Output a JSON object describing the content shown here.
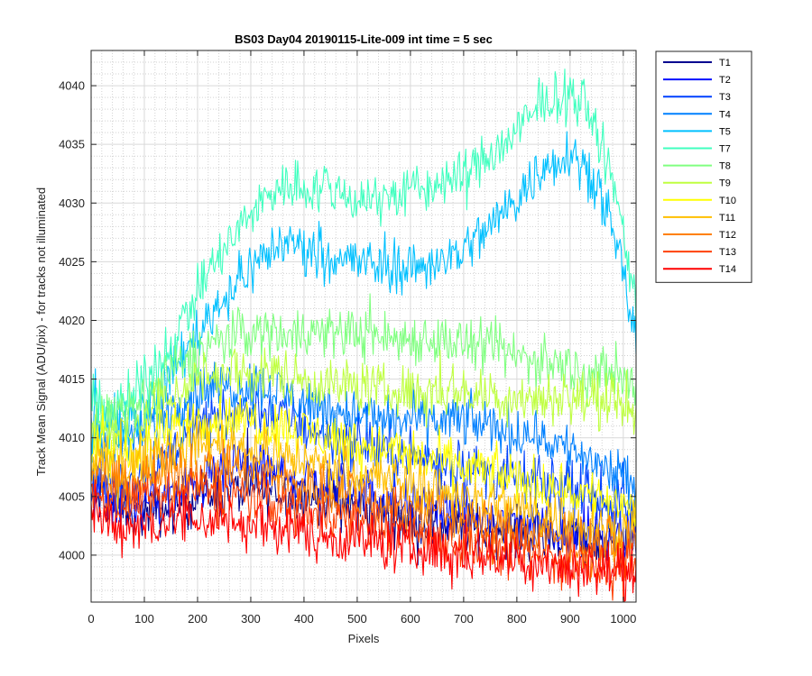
{
  "chart_data": {
    "type": "line",
    "title": "BS03 Day04 20190115-Lite-009 int time = 5 sec",
    "xlabel": "Pixels",
    "ylabel": "Track Mean Signal (ADU/pix) - for tracks not illuminated",
    "xlim": [
      0,
      1024
    ],
    "ylim": [
      3996,
      4043
    ],
    "xticks": [
      0,
      100,
      200,
      300,
      400,
      500,
      600,
      700,
      800,
      900,
      1000
    ],
    "yticks": [
      4000,
      4005,
      4010,
      4015,
      4020,
      4025,
      4030,
      4035,
      4040
    ],
    "grid": true,
    "minor_grid": true,
    "legend_position": "outside-top-right",
    "series": [
      {
        "name": "T1",
        "color": "#00008f",
        "x": [
          0,
          50,
          100,
          150,
          200,
          250,
          300,
          350,
          400,
          450,
          500,
          550,
          600,
          650,
          700,
          750,
          800,
          850,
          900,
          950,
          1000,
          1024
        ],
        "values": [
          4005,
          4004,
          4003.5,
          4004,
          4005,
          4005.5,
          4005.5,
          4005.5,
          4005,
          4004.5,
          4004,
          4003.5,
          4003,
          4002.5,
          4002.5,
          4002,
          4002,
          4001.5,
          4001.5,
          4001,
          4001,
          4001
        ]
      },
      {
        "name": "T2",
        "color": "#0010ff",
        "x": [
          0,
          50,
          100,
          150,
          200,
          250,
          300,
          350,
          400,
          450,
          500,
          550,
          600,
          650,
          700,
          750,
          800,
          850,
          900,
          950,
          1000,
          1024
        ],
        "values": [
          4005.5,
          4004.5,
          4004.5,
          4005,
          4006,
          4007,
          4007.5,
          4007,
          4006.5,
          4006,
          4005.5,
          4005,
          4004.5,
          4004,
          4003.5,
          4003,
          4003,
          4002.5,
          4002,
          4002,
          4002,
          4002
        ]
      },
      {
        "name": "T3",
        "color": "#0040ff",
        "x": [
          0,
          50,
          100,
          150,
          200,
          250,
          300,
          350,
          400,
          450,
          500,
          550,
          600,
          650,
          700,
          750,
          800,
          850,
          900,
          950,
          1000,
          1024
        ],
        "values": [
          4006.5,
          4006,
          4007,
          4009,
          4011,
          4012,
          4012.5,
          4012,
          4011,
          4010,
          4009.5,
          4009,
          4008.5,
          4008,
          4007.5,
          4007,
          4006.5,
          4006,
          4005.5,
          4005,
          4004,
          4004
        ]
      },
      {
        "name": "T4",
        "color": "#0080ff",
        "x": [
          0,
          50,
          100,
          150,
          200,
          250,
          300,
          350,
          400,
          450,
          500,
          550,
          600,
          650,
          700,
          750,
          800,
          850,
          900,
          950,
          1000,
          1024
        ],
        "values": [
          4010,
          4009,
          4010.5,
          4012.5,
          4014,
          4014.5,
          4014.5,
          4014,
          4013,
          4012.5,
          4012,
          4011.5,
          4011.5,
          4011.5,
          4011.5,
          4011,
          4010.5,
          4010,
          4009,
          4008,
          4006.5,
          4005
        ]
      },
      {
        "name": "T5",
        "color": "#00c0ff",
        "x": [
          0,
          50,
          100,
          150,
          200,
          250,
          300,
          350,
          400,
          450,
          500,
          550,
          600,
          650,
          700,
          750,
          800,
          850,
          900,
          950,
          1000,
          1024
        ],
        "values": [
          4012,
          4011,
          4012.5,
          4015.5,
          4019,
          4022,
          4024.5,
          4026.5,
          4026.5,
          4025.5,
          4025,
          4024.5,
          4024.5,
          4025,
          4026,
          4028,
          4030.5,
          4033,
          4034.5,
          4032,
          4024,
          4018
        ]
      },
      {
        "name": "T7",
        "color": "#40ffbf",
        "x": [
          0,
          50,
          100,
          150,
          200,
          250,
          300,
          350,
          400,
          450,
          500,
          550,
          600,
          650,
          700,
          750,
          800,
          850,
          900,
          950,
          1000,
          1024
        ],
        "values": [
          4013,
          4012.5,
          4014.5,
          4018,
          4022.5,
          4026,
          4029,
          4031.5,
          4031.5,
          4031,
          4030.5,
          4030.5,
          4031,
          4031.5,
          4032.5,
          4034,
          4036,
          4038.5,
          4039.5,
          4036.5,
          4028,
          4021
        ]
      },
      {
        "name": "T8",
        "color": "#80ff80",
        "x": [
          0,
          50,
          100,
          150,
          200,
          250,
          300,
          350,
          400,
          450,
          500,
          550,
          600,
          650,
          700,
          750,
          800,
          850,
          900,
          950,
          1000,
          1024
        ],
        "values": [
          4012,
          4011.5,
          4013,
          4015.5,
          4017.5,
          4018.5,
          4019,
          4019,
          4019,
          4019,
          4019,
          4018.5,
          4018.5,
          4018.5,
          4018,
          4017.5,
          4017,
          4016.5,
          4016,
          4015.5,
          4015,
          4014
        ]
      },
      {
        "name": "T9",
        "color": "#bfff40",
        "x": [
          0,
          50,
          100,
          150,
          200,
          250,
          300,
          350,
          400,
          450,
          500,
          550,
          600,
          650,
          700,
          750,
          800,
          850,
          900,
          950,
          1000,
          1024
        ],
        "values": [
          4011,
          4010.5,
          4011.5,
          4013.5,
          4015,
          4015.5,
          4015.5,
          4015.5,
          4015,
          4014.5,
          4014.5,
          4014,
          4014,
          4014,
          4014,
          4013.5,
          4013.5,
          4013.5,
          4013.5,
          4013,
          4013,
          4012.5
        ]
      },
      {
        "name": "T10",
        "color": "#ffff00",
        "x": [
          0,
          50,
          100,
          150,
          200,
          250,
          300,
          350,
          400,
          450,
          500,
          550,
          600,
          650,
          700,
          750,
          800,
          850,
          900,
          950,
          1000,
          1024
        ],
        "values": [
          4009,
          4008.5,
          4009.5,
          4010.5,
          4011.5,
          4011.5,
          4011.5,
          4011,
          4010.5,
          4010,
          4009.5,
          4009,
          4008.5,
          4008,
          4007.5,
          4007,
          4006.5,
          4006,
          4005.5,
          4005,
          4004.5,
          4004
        ]
      },
      {
        "name": "T11",
        "color": "#ffbf00",
        "x": [
          0,
          50,
          100,
          150,
          200,
          250,
          300,
          350,
          400,
          450,
          500,
          550,
          600,
          650,
          700,
          750,
          800,
          850,
          900,
          950,
          1000,
          1024
        ],
        "values": [
          4008,
          4007.5,
          4008,
          4009,
          4009.5,
          4009.5,
          4009,
          4008.5,
          4008,
          4007.5,
          4007,
          4006.5,
          4006,
          4005.5,
          4005,
          4004.5,
          4004,
          4003.5,
          4003,
          4002.5,
          4002,
          4002
        ]
      },
      {
        "name": "T12",
        "color": "#ff8000",
        "x": [
          0,
          50,
          100,
          150,
          200,
          250,
          300,
          350,
          400,
          450,
          500,
          550,
          600,
          650,
          700,
          750,
          800,
          850,
          900,
          950,
          1000,
          1024
        ],
        "values": [
          4006.5,
          4006,
          4006.5,
          4007,
          4007.5,
          4007.5,
          4007,
          4006.5,
          4006,
          4005.5,
          4005,
          4004.5,
          4004,
          4003.5,
          4003,
          4002.5,
          4002,
          4001.5,
          4001,
          4001,
          4000.5,
          4000.5
        ]
      },
      {
        "name": "T13",
        "color": "#ff4000",
        "x": [
          0,
          50,
          100,
          150,
          200,
          250,
          300,
          350,
          400,
          450,
          500,
          550,
          600,
          650,
          700,
          750,
          800,
          850,
          900,
          950,
          1000,
          1024
        ],
        "values": [
          4005,
          4004.5,
          4004.5,
          4005,
          4005.5,
          4005.5,
          4005,
          4004.5,
          4004,
          4003.5,
          4003,
          4002.5,
          4002,
          4001.5,
          4001,
          4000.5,
          4000,
          4000,
          3999.5,
          3999.5,
          3999,
          3999
        ]
      },
      {
        "name": "T14",
        "color": "#ff0000",
        "x": [
          0,
          50,
          100,
          150,
          200,
          250,
          300,
          350,
          400,
          450,
          500,
          550,
          600,
          650,
          700,
          750,
          800,
          850,
          900,
          950,
          1000,
          1024
        ],
        "values": [
          4003.5,
          4002.5,
          4002.5,
          4003,
          4003,
          4003,
          4002.5,
          4002.5,
          4002,
          4001.5,
          4001.5,
          4001,
          4000.5,
          4000.5,
          4000,
          4000,
          3999.5,
          3999.5,
          3999,
          3999,
          3998.5,
          3998.5
        ]
      }
    ]
  }
}
